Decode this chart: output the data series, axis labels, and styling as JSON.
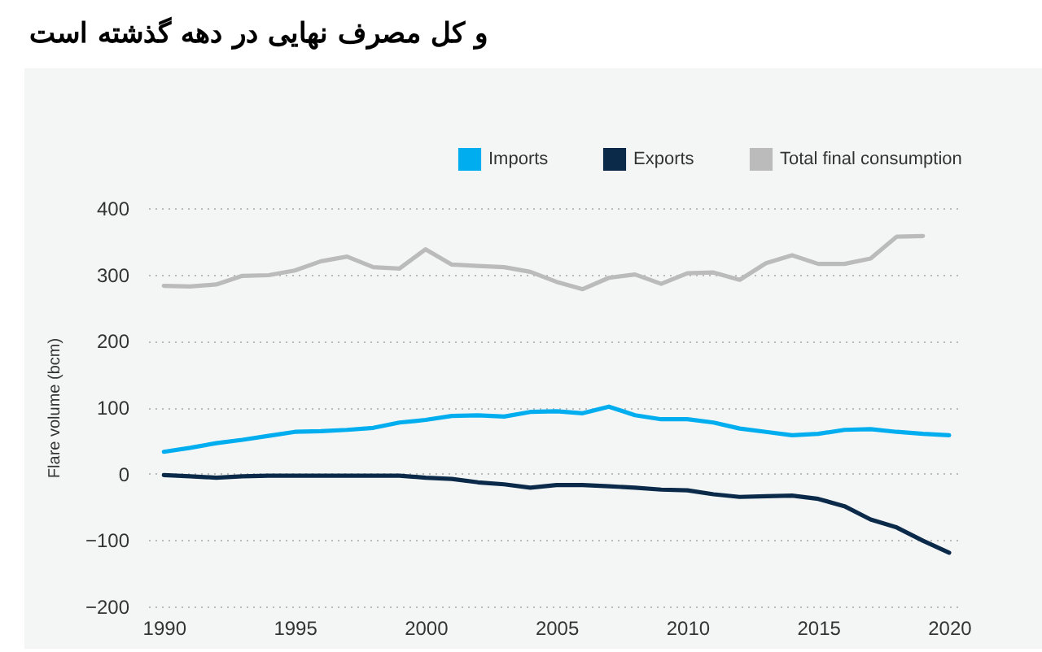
{
  "chart_data": {
    "type": "line",
    "title": "و کل مصرف نهایی در دهه گذشته است",
    "ylabel": "Flare volume (bcm)",
    "x": [
      1990,
      1991,
      1992,
      1993,
      1994,
      1995,
      1996,
      1997,
      1998,
      1999,
      2000,
      2001,
      2002,
      2003,
      2004,
      2005,
      2006,
      2007,
      2008,
      2009,
      2010,
      2011,
      2012,
      2013,
      2014,
      2015,
      2016,
      2017,
      2018,
      2019,
      2020
    ],
    "series": [
      {
        "name": "Imports",
        "color": "#00aeef",
        "values": [
          33,
          39,
          46,
          51,
          57,
          63,
          64,
          66,
          69,
          77,
          81,
          87,
          88,
          86,
          93,
          94,
          91,
          101,
          88,
          82,
          82,
          77,
          68,
          63,
          58,
          60,
          66,
          67,
          63,
          60,
          58
        ]
      },
      {
        "name": "Exports",
        "color": "#0b2a4a",
        "values": [
          -2,
          -4,
          -6,
          -4,
          -3,
          -3,
          -3,
          -3,
          -3,
          -3,
          -6,
          -8,
          -13,
          -16,
          -21,
          -17,
          -17,
          -19,
          -21,
          -24,
          -25,
          -31,
          -35,
          -34,
          -33,
          -38,
          -49,
          -69,
          -81,
          -101,
          -119
        ]
      },
      {
        "name": "Total final consumption",
        "color": "#bbbbbb",
        "x": [
          1990,
          1991,
          1992,
          1993,
          1994,
          1995,
          1996,
          1997,
          1998,
          1999,
          2000,
          2001,
          2002,
          2003,
          2004,
          2005,
          2006,
          2007,
          2008,
          2009,
          2010,
          2011,
          2012,
          2013,
          2014,
          2015,
          2016,
          2017,
          2018,
          2019
        ],
        "values": [
          283,
          282,
          285,
          298,
          299,
          306,
          320,
          327,
          311,
          309,
          338,
          315,
          313,
          311,
          304,
          289,
          278,
          295,
          300,
          286,
          302,
          303,
          292,
          317,
          329,
          316,
          316,
          324,
          357,
          358
        ]
      }
    ],
    "xlim": [
      1989.4,
      2020.5
    ],
    "xticks": [
      1990,
      1995,
      2000,
      2005,
      2010,
      2015,
      2020
    ],
    "ylim": [
      -200,
      400
    ],
    "yticks": [
      -200,
      -100,
      0,
      100,
      200,
      300,
      400
    ],
    "grid": "y",
    "legend": "top right",
    "marker": "none",
    "line_style": "solid"
  }
}
